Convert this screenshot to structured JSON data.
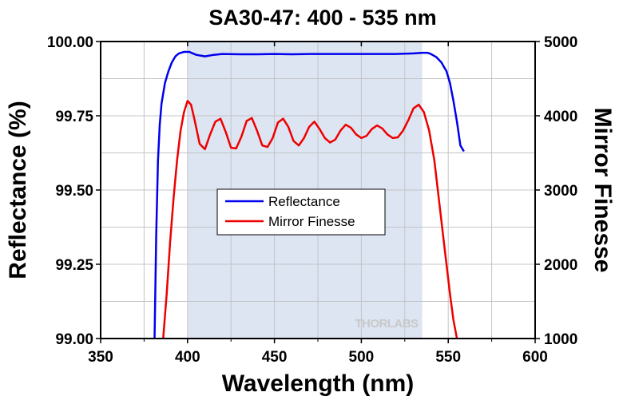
{
  "chart_data": {
    "type": "line",
    "title": "SA30-47: 400 - 535 nm",
    "xlabel": "Wavelength (nm)",
    "ylabel": "Reflectance (%)",
    "y2label": "Mirror Finesse",
    "xlim": [
      350,
      600
    ],
    "ylim": [
      99.0,
      100.0
    ],
    "y2lim": [
      1000,
      5000
    ],
    "x_ticks": [
      "350",
      "400",
      "450",
      "500",
      "550",
      "600"
    ],
    "y_ticks": [
      "99.00",
      "99.25",
      "99.50",
      "99.75",
      "100.00"
    ],
    "y2_ticks": [
      "1000",
      "2000",
      "3000",
      "4000",
      "5000"
    ],
    "grid": true,
    "shaded_band": [
      400,
      535
    ],
    "shaded_color": "#dde5f3",
    "watermark": "THORLABS",
    "legend_position": "center-left",
    "series": [
      {
        "name": "Reflectance",
        "axis": "left",
        "color": "#0000ee",
        "x": [
          381,
          382,
          383,
          384,
          385,
          387,
          389,
          391,
          393,
          395,
          398,
          401,
          405,
          410,
          415,
          420,
          430,
          440,
          450,
          460,
          470,
          480,
          490,
          500,
          510,
          520,
          530,
          535,
          538,
          540,
          543,
          546,
          549,
          551,
          553,
          555,
          557,
          559
        ],
        "y": [
          99.0,
          99.35,
          99.6,
          99.72,
          99.79,
          99.86,
          99.9,
          99.93,
          99.95,
          99.96,
          99.965,
          99.965,
          99.955,
          99.95,
          99.955,
          99.958,
          99.957,
          99.957,
          99.958,
          99.957,
          99.958,
          99.958,
          99.958,
          99.958,
          99.958,
          99.958,
          99.96,
          99.962,
          99.962,
          99.958,
          99.948,
          99.93,
          99.9,
          99.86,
          99.8,
          99.73,
          99.65,
          99.63
        ]
      },
      {
        "name": "Mirror Finesse",
        "axis": "right",
        "color": "#ee0000",
        "x": [
          386,
          388,
          390,
          392,
          394,
          396,
          398,
          400,
          402,
          404,
          407,
          410,
          413,
          416,
          419,
          422,
          425,
          428,
          431,
          434,
          437,
          440,
          443,
          446,
          449,
          452,
          455,
          458,
          461,
          464,
          467,
          470,
          473,
          476,
          479,
          482,
          485,
          488,
          491,
          494,
          497,
          500,
          503,
          506,
          509,
          512,
          515,
          518,
          521,
          524,
          527,
          530,
          533,
          536,
          539,
          542,
          545,
          548,
          551,
          553,
          555
        ],
        "y": [
          1000,
          1600,
          2300,
          2900,
          3400,
          3800,
          4050,
          4200,
          4150,
          3950,
          3620,
          3550,
          3750,
          3920,
          3960,
          3780,
          3570,
          3560,
          3720,
          3930,
          3970,
          3800,
          3600,
          3580,
          3700,
          3910,
          3960,
          3850,
          3660,
          3600,
          3700,
          3850,
          3920,
          3820,
          3700,
          3640,
          3680,
          3800,
          3880,
          3840,
          3750,
          3700,
          3730,
          3820,
          3870,
          3830,
          3750,
          3700,
          3710,
          3800,
          3940,
          4100,
          4150,
          4050,
          3800,
          3400,
          2800,
          2200,
          1600,
          1250,
          1000
        ]
      }
    ]
  }
}
